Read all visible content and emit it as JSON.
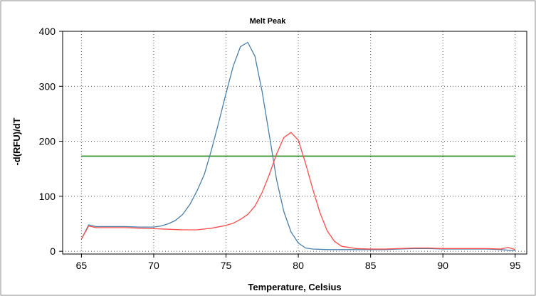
{
  "chart_data": {
    "type": "line",
    "title": "Melt Peak",
    "xlabel": "Temperature, Celsius",
    "ylabel": "-d(RFU)/dT",
    "xlim": [
      63.7,
      95.8
    ],
    "ylim": [
      -5,
      400
    ],
    "xticks": [
      65,
      70,
      75,
      80,
      85,
      90,
      95
    ],
    "yticks": [
      0,
      100,
      200,
      300,
      400
    ],
    "grid": "dotted",
    "threshold": {
      "value": 173,
      "x_range": [
        65,
        95
      ],
      "color": "#228B22"
    },
    "series": [
      {
        "color": "#4a7fa8",
        "x": [
          65,
          65.5,
          66,
          67,
          68,
          69,
          70,
          70.5,
          71,
          71.5,
          72,
          72.5,
          73,
          73.5,
          74,
          74.5,
          75,
          75.5,
          76,
          76.5,
          77,
          77.5,
          78,
          78.5,
          79,
          79.5,
          80,
          80.5,
          81,
          82,
          83,
          84,
          85,
          86,
          87,
          88,
          89,
          90,
          91,
          92,
          93,
          94,
          95
        ],
        "y": [
          22,
          48,
          45,
          45,
          45,
          44,
          44,
          46,
          50,
          56,
          67,
          85,
          110,
          140,
          185,
          235,
          287,
          337,
          372,
          380,
          355,
          290,
          210,
          130,
          72,
          35,
          15,
          6,
          4,
          3,
          3,
          3,
          3,
          3,
          4,
          5,
          5,
          4,
          4,
          4,
          4,
          3,
          1
        ]
      },
      {
        "color": "#ff4d4d",
        "x": [
          65,
          65.5,
          66,
          67,
          68,
          69,
          70,
          71,
          72,
          73,
          74,
          75,
          75.5,
          76,
          76.5,
          77,
          77.5,
          78,
          78.5,
          79,
          79.5,
          80,
          80.5,
          81,
          81.5,
          82,
          82.5,
          83,
          84,
          85,
          86,
          87,
          88,
          89,
          90,
          91,
          92,
          93,
          94,
          94.5,
          95
        ],
        "y": [
          22,
          46,
          43,
          43,
          43,
          42,
          41,
          40,
          39,
          39,
          42,
          47,
          51,
          58,
          67,
          82,
          107,
          140,
          177,
          207,
          216,
          202,
          160,
          113,
          70,
          37,
          18,
          9,
          5,
          4,
          4,
          5,
          6,
          6,
          5,
          5,
          5,
          5,
          4,
          7,
          3
        ]
      }
    ]
  }
}
